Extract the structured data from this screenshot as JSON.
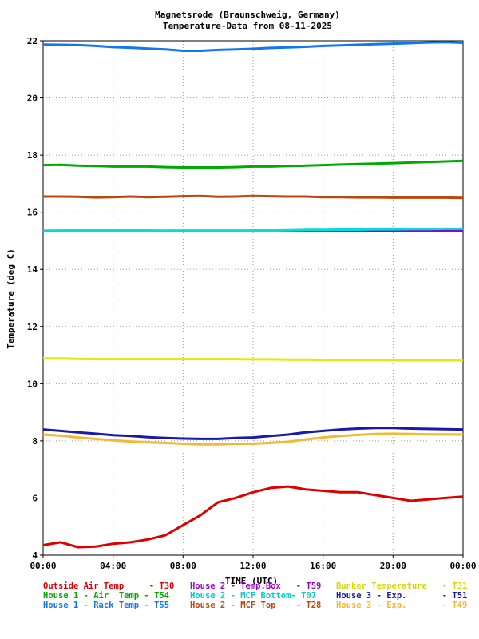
{
  "chart_data": {
    "type": "line",
    "title": "Magnetsrode (Braunschweig, Germany)",
    "subtitle": "Temperature-Data from 08-11-2025",
    "xlabel": "TIME (UTC)",
    "ylabel": "Temperature (deg C)",
    "xlim": [
      0,
      24
    ],
    "ylim": [
      4,
      22
    ],
    "x_ticks": [
      "00:00",
      "04:00",
      "08:00",
      "12:00",
      "16:00",
      "20:00",
      "00:00"
    ],
    "y_ticks": [
      "4",
      "6",
      "8",
      "10",
      "12",
      "14",
      "16",
      "18",
      "20",
      "22"
    ],
    "grid": true,
    "legend_position": "bottom",
    "x": [
      0,
      1,
      2,
      3,
      4,
      5,
      6,
      7,
      8,
      9,
      10,
      11,
      12,
      13,
      14,
      15,
      16,
      17,
      18,
      19,
      20,
      21,
      22,
      23,
      24
    ],
    "series": [
      {
        "name": "Outside Air Temp     - T30",
        "color": "#dd0000",
        "values": [
          4.35,
          4.45,
          4.28,
          4.3,
          4.4,
          4.45,
          4.55,
          4.7,
          5.05,
          5.4,
          5.85,
          6.0,
          6.2,
          6.35,
          6.4,
          6.3,
          6.25,
          6.2,
          6.2,
          6.1,
          6.0,
          5.9,
          5.95,
          6.0,
          6.05
        ]
      },
      {
        "name": "House 2 - Temp.Box   - T59",
        "color": "#9900cc",
        "values": [
          15.35,
          15.35,
          15.35,
          15.35,
          15.35,
          15.35,
          15.35,
          15.35,
          15.35,
          15.35,
          15.35,
          15.35,
          15.35,
          15.35,
          15.35,
          15.35,
          15.35,
          15.35,
          15.35,
          15.35,
          15.35,
          15.35,
          15.35,
          15.35,
          15.35
        ]
      },
      {
        "name": "Bunker Temperature   - T31",
        "color": "#e8e800",
        "values": [
          10.88,
          10.88,
          10.87,
          10.86,
          10.86,
          10.86,
          10.86,
          10.86,
          10.86,
          10.86,
          10.86,
          10.86,
          10.85,
          10.85,
          10.84,
          10.84,
          10.83,
          10.83,
          10.83,
          10.83,
          10.82,
          10.82,
          10.82,
          10.82,
          10.82
        ]
      },
      {
        "name": "House 1 - Air  Temp - T54",
        "color": "#00aa00",
        "values": [
          17.65,
          17.66,
          17.63,
          17.62,
          17.6,
          17.6,
          17.6,
          17.58,
          17.57,
          17.57,
          17.57,
          17.58,
          17.6,
          17.6,
          17.62,
          17.63,
          17.65,
          17.67,
          17.69,
          17.7,
          17.72,
          17.74,
          17.76,
          17.78,
          17.8
        ]
      },
      {
        "name": "House 2 - MCF Bottom- T07",
        "color": "#00dddd",
        "values": [
          15.35,
          15.34,
          15.34,
          15.34,
          15.34,
          15.34,
          15.34,
          15.35,
          15.35,
          15.35,
          15.35,
          15.35,
          15.36,
          15.36,
          15.37,
          15.38,
          15.38,
          15.39,
          15.39,
          15.4,
          15.4,
          15.41,
          15.41,
          15.42,
          15.42
        ]
      },
      {
        "name": "House 3 - Exp.       - T51",
        "color": "#1a1aa6",
        "values": [
          8.4,
          8.35,
          8.3,
          8.25,
          8.2,
          8.17,
          8.13,
          8.1,
          8.08,
          8.07,
          8.07,
          8.1,
          8.12,
          8.17,
          8.22,
          8.3,
          8.35,
          8.4,
          8.43,
          8.45,
          8.45,
          8.43,
          8.42,
          8.41,
          8.4
        ]
      },
      {
        "name": "House 1 - Rack Temp - T55",
        "color": "#1177ee",
        "values": [
          21.87,
          21.86,
          21.85,
          21.82,
          21.78,
          21.76,
          21.73,
          21.7,
          21.65,
          21.65,
          21.68,
          21.7,
          21.72,
          21.75,
          21.77,
          21.79,
          21.82,
          21.84,
          21.86,
          21.88,
          21.9,
          21.92,
          21.94,
          21.95,
          21.93
        ]
      },
      {
        "name": "House 2 - MCF Top    - T28",
        "color": "#b84a10",
        "values": [
          16.55,
          16.55,
          16.54,
          16.52,
          16.53,
          16.55,
          16.53,
          16.54,
          16.56,
          16.57,
          16.54,
          16.55,
          16.57,
          16.56,
          16.55,
          16.55,
          16.53,
          16.53,
          16.52,
          16.52,
          16.51,
          16.51,
          16.51,
          16.51,
          16.5
        ]
      },
      {
        "name": "House 3 - Exp.       - T49",
        "color": "#f5b830",
        "values": [
          8.22,
          8.18,
          8.12,
          8.07,
          8.02,
          7.98,
          7.95,
          7.93,
          7.9,
          7.88,
          7.88,
          7.9,
          7.9,
          7.93,
          7.97,
          8.05,
          8.12,
          8.17,
          8.21,
          8.24,
          8.25,
          8.24,
          8.23,
          8.23,
          8.22
        ]
      }
    ]
  },
  "legend": {
    "t30": "Outside Air Temp     - T30",
    "t59": "House 2 - Temp.Box   - T59",
    "t31": "Bunker Temperature   - T31",
    "t54": "House 1 - Air  Temp - T54",
    "t07": "House 2 - MCF Bottom- T07",
    "t51": "House 3 - Exp.       - T51",
    "t55": "House 1 - Rack Temp - T55",
    "t28": "House 2 - MCF Top    - T28",
    "t49": "House 3 - Exp.       - T49"
  }
}
